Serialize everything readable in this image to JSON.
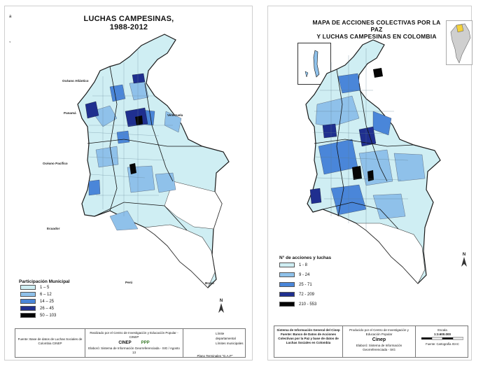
{
  "left": {
    "title_line1": "LUCHAS CAMPESINAS,",
    "title_line2": "1988-2012",
    "corner_marks": [
      "a",
      ","
    ],
    "place_labels": {
      "caribe": "Océano Atlántico",
      "panama": "Panamá",
      "venezuela": "Venezuela",
      "pacifico": "Océano Pacífico",
      "ecuador": "Ecuador",
      "peru": "Perú",
      "brasil": "Brasil"
    },
    "map_legend": [
      {
        "label": "Límite departamental"
      },
      {
        "label": "Límites municipales"
      }
    ],
    "legend": {
      "title": "Participación Municipal",
      "items": [
        {
          "label": "1 – 5",
          "color": "#cfeef3"
        },
        {
          "label": "6 – 12",
          "color": "#8fc1ea"
        },
        {
          "label": "14 – 25",
          "color": "#4a86d9"
        },
        {
          "label": "26 – 45",
          "color": "#1f2f8f"
        },
        {
          "label": "50 – 103",
          "color": "#050505"
        }
      ]
    },
    "footer": {
      "source": "Fuente: Base de datos de Luchas Sociales de Colombia CINEP",
      "center_top": "Realizado por el Centro de Investigación y Educación Popular - CINEP",
      "logo1": "CINEP",
      "logo2": "PPP",
      "center_bottom": "Elaboró: Sistema de Información Georreferenciada - SIG / Agosto 13",
      "right_top": "",
      "right_bottom": "Plano Terminales \"G.A.P\""
    },
    "north": "N"
  },
  "right": {
    "title_line1": "MAPA DE ACCIONES COLECTIVAS POR LA PAZ",
    "title_line2": "Y LUCHAS CAMPESINAS EN COLOMBIA",
    "legend": {
      "title": "N° de acciones y luchas",
      "items": [
        {
          "label": "1 - 8",
          "color": "#cfeef3"
        },
        {
          "label": "9 - 24",
          "color": "#8fc1ea"
        },
        {
          "label": "25 - 71",
          "color": "#4a86d9"
        },
        {
          "label": "72 - 209",
          "color": "#1f2f8f"
        },
        {
          "label": "210 - 553",
          "color": "#050505"
        }
      ]
    },
    "footer": {
      "left": "Sistema de Información General del Cinep Fuente: Banco de Datos de Acciones Colectivas por la Paz y base de datos de Luchas Sociales en Colombia",
      "center_top": "Producido por el Centro de Investigación y Educación Popular",
      "logo": "Cinep",
      "center_bottom": "Elaboró: Sistema de Información Georreferenciada - SIG",
      "right_top": "Escala",
      "right_scale": "1:3.600.000",
      "right_bottom": "Fuente: Cartografía IGAC"
    },
    "north": "N"
  },
  "colors": {
    "c1": "#cfeef3",
    "c2": "#8fc1ea",
    "c3": "#4a86d9",
    "c4": "#1f2f8f",
    "c5": "#050505"
  }
}
